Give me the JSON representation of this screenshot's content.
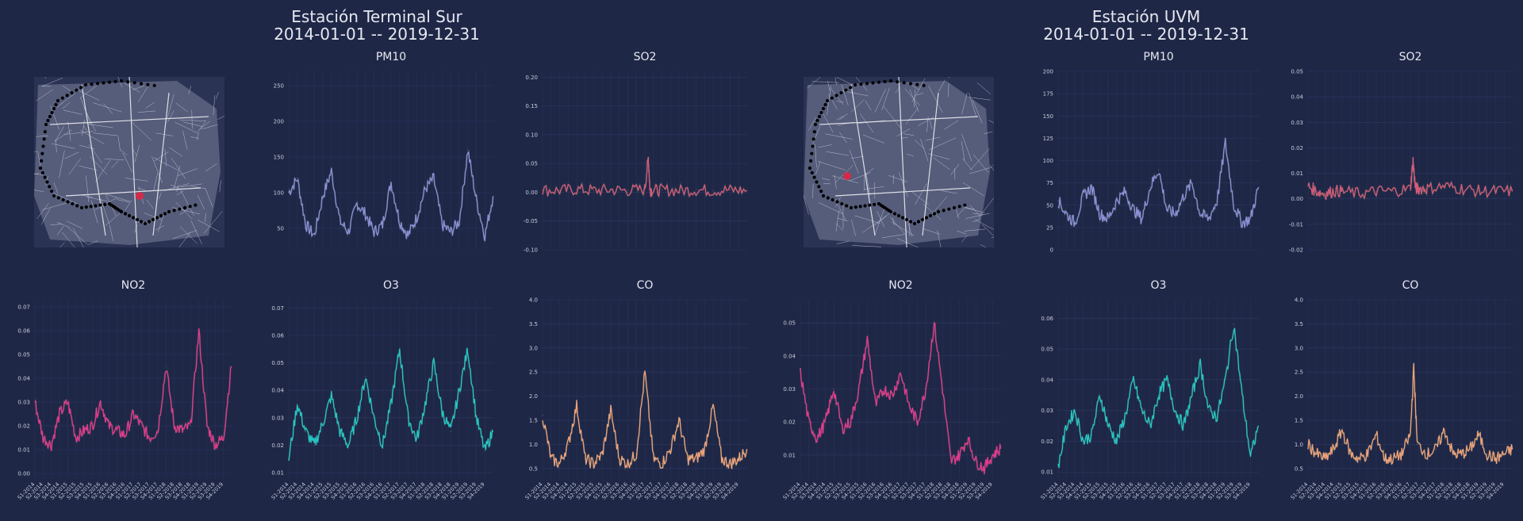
{
  "stations": [
    {
      "name": "Estación Terminal Sur",
      "range": "2014-01-01 -- 2019-12-31"
    },
    {
      "name": "Estación UVM",
      "range": "2014-01-01 -- 2019-12-31"
    }
  ],
  "colors": {
    "background": "#1f2747",
    "PM10": "#8c8fd9",
    "SO2": "#d45a7a",
    "NO2": "#e8388f",
    "O3": "#26c6c6",
    "CO": "#f0a27d",
    "station_marker": "#d42a4a",
    "route_dots": "#000000"
  },
  "x_ticks": [
    "S1-2014",
    "S2-2014",
    "S3-2014",
    "S4-2014",
    "S1-2015",
    "S2-2015",
    "S3-2015",
    "S4-2015",
    "S1-2016",
    "S2-2016",
    "S3-2016",
    "S4-2016",
    "S1-2017",
    "S2-2017",
    "S3-2017",
    "S4-2017",
    "S1-2018",
    "S2-2018",
    "S3-2018",
    "S4-2018",
    "S1-2019",
    "S2-2019",
    "S3-2019",
    "S4-2019"
  ],
  "chart_data": [
    {
      "station": "Estación Terminal Sur",
      "title": "PM10",
      "type": "line",
      "ylim": [
        20,
        270
      ],
      "yticks": [
        50,
        100,
        150,
        200,
        250
      ],
      "show_x": false,
      "color_key": "PM10",
      "x": [
        2014.0,
        2014.25,
        2014.5,
        2014.75,
        2015.0,
        2015.25,
        2015.5,
        2015.75,
        2016.0,
        2016.25,
        2016.5,
        2016.75,
        2017.0,
        2017.25,
        2017.5,
        2017.75,
        2018.0,
        2018.25,
        2018.5,
        2018.75,
        2019.0,
        2019.25,
        2019.5,
        2019.75,
        2019.99
      ],
      "y": [
        100,
        120,
        55,
        40,
        95,
        130,
        60,
        45,
        85,
        70,
        45,
        55,
        115,
        60,
        40,
        65,
        105,
        120,
        55,
        45,
        60,
        160,
        90,
        40,
        95
      ]
    },
    {
      "station": "Estación Terminal Sur",
      "title": "SO2",
      "type": "line",
      "ylim": [
        -0.1,
        0.21
      ],
      "yticks": [
        -0.1,
        -0.05,
        0.0,
        0.05,
        0.1,
        0.15,
        0.2
      ],
      "show_x": false,
      "color_key": "SO2",
      "x": [
        2014.0,
        2014.5,
        2015.0,
        2015.5,
        2016.0,
        2016.5,
        2017.0,
        2017.1,
        2017.15,
        2017.2,
        2017.5,
        2018.0,
        2018.5,
        2019.0,
        2019.5,
        2019.99
      ],
      "y": [
        0.004,
        0.003,
        0.005,
        0.003,
        0.004,
        0.003,
        0.005,
        0.06,
        0.004,
        0.003,
        0.004,
        0.003,
        0.004,
        0.003,
        0.004,
        0.003
      ]
    },
    {
      "station": "Estación Terminal Sur",
      "title": "NO2",
      "type": "line",
      "ylim": [
        -0.002,
        0.073
      ],
      "yticks": [
        0.0,
        0.01,
        0.02,
        0.03,
        0.04,
        0.05,
        0.06,
        0.07
      ],
      "show_x": true,
      "color_key": "NO2",
      "x": [
        2014.0,
        2014.25,
        2014.5,
        2014.75,
        2015.0,
        2015.25,
        2015.5,
        2015.75,
        2016.0,
        2016.25,
        2016.5,
        2016.75,
        2017.0,
        2017.25,
        2017.5,
        2017.75,
        2018.0,
        2018.25,
        2018.5,
        2018.75,
        2019.0,
        2019.25,
        2019.5,
        2019.75,
        2019.99
      ],
      "y": [
        0.03,
        0.015,
        0.012,
        0.025,
        0.03,
        0.015,
        0.018,
        0.02,
        0.03,
        0.02,
        0.018,
        0.016,
        0.025,
        0.02,
        0.015,
        0.018,
        0.045,
        0.02,
        0.018,
        0.02,
        0.06,
        0.02,
        0.012,
        0.015,
        0.045
      ]
    },
    {
      "station": "Estación Terminal Sur",
      "title": "O3",
      "type": "line",
      "ylim": [
        0.008,
        0.073
      ],
      "yticks": [
        0.01,
        0.02,
        0.03,
        0.04,
        0.05,
        0.06,
        0.07
      ],
      "show_x": true,
      "color_key": "O3",
      "x": [
        2014.0,
        2014.25,
        2014.5,
        2014.75,
        2015.0,
        2015.25,
        2015.5,
        2015.75,
        2016.0,
        2016.25,
        2016.5,
        2016.75,
        2017.0,
        2017.25,
        2017.5,
        2017.75,
        2018.0,
        2018.25,
        2018.5,
        2018.75,
        2019.0,
        2019.25,
        2019.5,
        2019.75,
        2019.99
      ],
      "y": [
        0.015,
        0.035,
        0.025,
        0.02,
        0.028,
        0.038,
        0.025,
        0.02,
        0.03,
        0.045,
        0.03,
        0.02,
        0.035,
        0.055,
        0.03,
        0.022,
        0.035,
        0.05,
        0.032,
        0.025,
        0.04,
        0.055,
        0.03,
        0.018,
        0.025
      ]
    },
    {
      "station": "Estación Terminal Sur",
      "title": "CO",
      "type": "line",
      "ylim": [
        0.3,
        4.0
      ],
      "yticks": [
        0.5,
        1.0,
        1.5,
        2.0,
        2.5,
        3.0,
        3.5,
        4.0
      ],
      "show_x": true,
      "color_key": "CO",
      "x": [
        2014.0,
        2014.25,
        2014.5,
        2014.75,
        2015.0,
        2015.25,
        2015.5,
        2015.75,
        2016.0,
        2016.25,
        2016.5,
        2016.75,
        2017.0,
        2017.25,
        2017.5,
        2017.75,
        2018.0,
        2018.25,
        2018.5,
        2018.75,
        2019.0,
        2019.25,
        2019.5,
        2019.75,
        2019.99
      ],
      "y": [
        1.6,
        0.7,
        0.6,
        1.0,
        1.8,
        0.7,
        0.6,
        0.8,
        1.7,
        0.7,
        0.6,
        0.8,
        2.5,
        0.7,
        0.6,
        0.9,
        1.5,
        0.7,
        0.7,
        0.9,
        1.8,
        0.7,
        0.6,
        0.7,
        0.9
      ]
    },
    {
      "station": "Estación UVM",
      "title": "PM10",
      "type": "line",
      "ylim": [
        0,
        200
      ],
      "yticks": [
        0,
        25,
        50,
        75,
        100,
        125,
        150,
        175,
        200
      ],
      "show_x": false,
      "color_key": "PM10",
      "x": [
        2014.0,
        2014.25,
        2014.5,
        2014.75,
        2015.0,
        2015.25,
        2015.5,
        2015.75,
        2016.0,
        2016.25,
        2016.5,
        2016.75,
        2017.0,
        2017.25,
        2017.5,
        2017.75,
        2018.0,
        2018.25,
        2018.5,
        2018.75,
        2019.0,
        2019.25,
        2019.5,
        2019.75,
        2019.99
      ],
      "y": [
        55,
        40,
        30,
        60,
        70,
        40,
        35,
        55,
        65,
        45,
        35,
        70,
        90,
        45,
        40,
        60,
        75,
        40,
        35,
        55,
        120,
        50,
        30,
        35,
        70
      ]
    },
    {
      "station": "Estación UVM",
      "title": "SO2",
      "type": "line",
      "ylim": [
        -0.02,
        0.05
      ],
      "yticks": [
        -0.02,
        -0.01,
        0.0,
        0.01,
        0.02,
        0.03,
        0.04,
        0.05
      ],
      "show_x": false,
      "color_key": "SO2",
      "x": [
        2014.0,
        2014.25,
        2014.5,
        2014.75,
        2015.0,
        2015.5,
        2016.0,
        2016.5,
        2017.0,
        2017.08,
        2017.15,
        2017.25,
        2017.5,
        2018.0,
        2018.5,
        2019.0,
        2019.5,
        2019.99
      ],
      "y": [
        0.005,
        0.003,
        0.002,
        0.003,
        0.003,
        0.002,
        0.003,
        0.003,
        0.004,
        0.015,
        0.004,
        0.004,
        0.004,
        0.005,
        0.004,
        0.003,
        0.003,
        0.003
      ]
    },
    {
      "station": "Estación UVM",
      "title": "NO2",
      "type": "line",
      "ylim": [
        0.003,
        0.057
      ],
      "yticks": [
        0.01,
        0.02,
        0.03,
        0.04,
        0.05
      ],
      "show_x": true,
      "color_key": "NO2",
      "x": [
        2014.0,
        2014.25,
        2014.5,
        2014.75,
        2015.0,
        2015.25,
        2015.5,
        2015.75,
        2016.0,
        2016.25,
        2016.5,
        2016.75,
        2017.0,
        2017.25,
        2017.5,
        2017.75,
        2018.0,
        2018.25,
        2018.5,
        2018.75,
        2019.0,
        2019.25,
        2019.5,
        2019.75,
        2019.99
      ],
      "y": [
        0.035,
        0.02,
        0.015,
        0.02,
        0.03,
        0.018,
        0.02,
        0.03,
        0.045,
        0.025,
        0.03,
        0.028,
        0.035,
        0.025,
        0.02,
        0.03,
        0.05,
        0.03,
        0.008,
        0.01,
        0.015,
        0.008,
        0.006,
        0.01,
        0.012
      ]
    },
    {
      "station": "Estación UVM",
      "title": "O3",
      "type": "line",
      "ylim": [
        0.008,
        0.066
      ],
      "yticks": [
        0.01,
        0.02,
        0.03,
        0.04,
        0.05,
        0.06
      ],
      "show_x": true,
      "color_key": "O3",
      "x": [
        2014.0,
        2014.25,
        2014.5,
        2014.75,
        2015.0,
        2015.25,
        2015.5,
        2015.75,
        2016.0,
        2016.25,
        2016.5,
        2016.75,
        2017.0,
        2017.25,
        2017.5,
        2017.75,
        2018.0,
        2018.25,
        2018.5,
        2018.75,
        2019.0,
        2019.25,
        2019.5,
        2019.75,
        2019.99
      ],
      "y": [
        0.012,
        0.025,
        0.03,
        0.02,
        0.022,
        0.035,
        0.025,
        0.02,
        0.028,
        0.04,
        0.03,
        0.025,
        0.035,
        0.04,
        0.03,
        0.025,
        0.035,
        0.045,
        0.03,
        0.028,
        0.04,
        0.058,
        0.035,
        0.015,
        0.025
      ]
    },
    {
      "station": "Estación UVM",
      "title": "CO",
      "type": "line",
      "ylim": [
        0.3,
        4.0
      ],
      "yticks": [
        0.5,
        1.0,
        1.5,
        2.0,
        2.5,
        3.0,
        3.5,
        4.0
      ],
      "show_x": true,
      "color_key": "CO",
      "x": [
        2014.0,
        2014.25,
        2014.5,
        2014.75,
        2015.0,
        2015.25,
        2015.5,
        2015.75,
        2016.0,
        2016.25,
        2016.5,
        2016.75,
        2017.0,
        2017.1,
        2017.2,
        2017.5,
        2017.75,
        2018.0,
        2018.25,
        2018.5,
        2018.75,
        2019.0,
        2019.25,
        2019.5,
        2019.75,
        2019.99
      ],
      "y": [
        1.0,
        0.8,
        0.7,
        0.9,
        1.3,
        0.8,
        0.7,
        0.8,
        1.2,
        0.7,
        0.7,
        0.8,
        1.2,
        2.6,
        1.0,
        0.8,
        0.9,
        1.3,
        0.8,
        0.8,
        0.9,
        1.2,
        0.8,
        0.7,
        0.8,
        0.9
      ]
    }
  ]
}
